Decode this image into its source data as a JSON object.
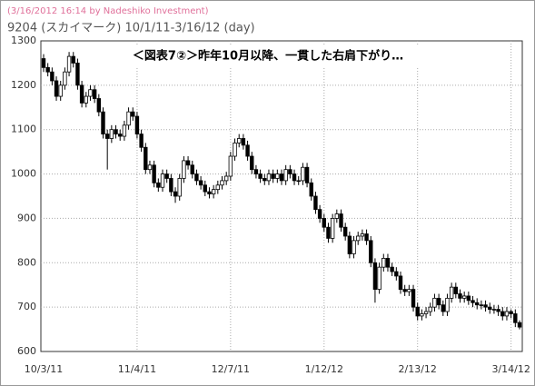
{
  "chart_data": {
    "type": "candlestick",
    "subtitle": "(3/16/2012 16:14 by Nadeshiko Investment)",
    "title": "9204 (スカイマーク)  10/1/11-3/16/12 (day)",
    "annotation": "＜図表7②＞昨年10月以降、一貫した右肩下がり…",
    "categories": [
      "10/3/11",
      null,
      null,
      null,
      null,
      null,
      null,
      null,
      null,
      null,
      null,
      null,
      null,
      null,
      null,
      null,
      null,
      null,
      null,
      null,
      null,
      null,
      "11/4/11",
      null,
      null,
      null,
      null,
      null,
      null,
      null,
      null,
      null,
      null,
      null,
      null,
      null,
      null,
      null,
      null,
      null,
      null,
      null,
      null,
      null,
      "12/7/11",
      null,
      null,
      null,
      null,
      null,
      null,
      null,
      null,
      null,
      null,
      null,
      null,
      null,
      null,
      null,
      null,
      null,
      null,
      null,
      null,
      null,
      "1/12/12",
      null,
      null,
      null,
      null,
      null,
      null,
      null,
      null,
      null,
      null,
      null,
      null,
      null,
      null,
      null,
      null,
      null,
      null,
      null,
      null,
      null,
      "2/13/12",
      null,
      null,
      null,
      null,
      null,
      null,
      null,
      null,
      null,
      null,
      null,
      null,
      null,
      null,
      null,
      null,
      null,
      null,
      null,
      null,
      null,
      "3/14/12",
      null,
      null
    ],
    "open": [
      1260,
      1240,
      1230,
      1210,
      1175,
      1200,
      1230,
      1265,
      1250,
      1200,
      1160,
      1175,
      1190,
      1170,
      1140,
      1090,
      1080,
      1100,
      1090,
      1085,
      1110,
      1140,
      1130,
      1090,
      1060,
      1010,
      1020,
      980,
      970,
      1000,
      990,
      960,
      950,
      990,
      1030,
      1020,
      1000,
      985,
      975,
      960,
      955,
      965,
      975,
      985,
      995,
      1040,
      1070,
      1080,
      1065,
      1040,
      1010,
      1000,
      990,
      985,
      1000,
      990,
      1000,
      985,
      1010,
      1000,
      985,
      985,
      1015,
      980,
      950,
      920,
      900,
      880,
      855,
      900,
      910,
      880,
      860,
      820,
      850,
      860,
      865,
      850,
      800,
      740,
      790,
      810,
      790,
      780,
      770,
      740,
      735,
      740,
      700,
      680,
      685,
      690,
      700,
      720,
      705,
      690,
      720,
      745,
      730,
      720,
      725,
      715,
      710,
      705,
      705,
      700,
      695,
      695,
      690,
      680,
      690,
      685,
      665
    ],
    "high": [
      1270,
      1250,
      1240,
      1220,
      1210,
      1240,
      1275,
      1275,
      1260,
      1210,
      1185,
      1200,
      1200,
      1180,
      1150,
      1100,
      1110,
      1110,
      1100,
      1120,
      1150,
      1150,
      1140,
      1100,
      1070,
      1030,
      1030,
      990,
      1010,
      1010,
      1000,
      970,
      1000,
      1040,
      1040,
      1030,
      1010,
      995,
      985,
      970,
      975,
      985,
      995,
      1005,
      1050,
      1080,
      1090,
      1090,
      1075,
      1050,
      1020,
      1010,
      1000,
      1010,
      1010,
      1010,
      1010,
      1020,
      1020,
      1010,
      995,
      1025,
      1025,
      990,
      960,
      930,
      910,
      890,
      910,
      920,
      920,
      890,
      870,
      860,
      870,
      875,
      875,
      860,
      810,
      800,
      820,
      820,
      800,
      790,
      780,
      750,
      750,
      750,
      710,
      695,
      700,
      710,
      730,
      730,
      715,
      730,
      755,
      755,
      740,
      735,
      735,
      725,
      720,
      715,
      715,
      710,
      705,
      705,
      700,
      700,
      695,
      695,
      670
    ],
    "low": [
      1230,
      1220,
      1200,
      1165,
      1165,
      1190,
      1220,
      1240,
      1190,
      1150,
      1150,
      1165,
      1160,
      1130,
      1080,
      1010,
      1070,
      1080,
      1075,
      1075,
      1100,
      1120,
      1080,
      1050,
      1000,
      1000,
      970,
      960,
      960,
      980,
      950,
      935,
      940,
      980,
      1010,
      990,
      975,
      965,
      950,
      945,
      945,
      955,
      965,
      975,
      985,
      1030,
      1060,
      1055,
      1030,
      1000,
      990,
      980,
      975,
      975,
      980,
      980,
      975,
      975,
      990,
      975,
      975,
      975,
      970,
      940,
      910,
      890,
      870,
      845,
      845,
      890,
      870,
      850,
      810,
      810,
      840,
      850,
      840,
      790,
      710,
      730,
      780,
      780,
      770,
      760,
      730,
      725,
      725,
      690,
      670,
      670,
      675,
      680,
      690,
      695,
      680,
      680,
      710,
      720,
      710,
      710,
      705,
      700,
      695,
      695,
      690,
      685,
      685,
      680,
      670,
      670,
      675,
      655,
      650
    ],
    "close": [
      1240,
      1230,
      1210,
      1175,
      1200,
      1230,
      1265,
      1250,
      1200,
      1160,
      1175,
      1190,
      1170,
      1140,
      1090,
      1080,
      1100,
      1090,
      1085,
      1110,
      1140,
      1130,
      1090,
      1060,
      1010,
      1020,
      980,
      970,
      1000,
      990,
      960,
      950,
      990,
      1030,
      1020,
      1000,
      985,
      975,
      960,
      955,
      965,
      975,
      985,
      995,
      1040,
      1070,
      1080,
      1065,
      1040,
      1010,
      1000,
      990,
      985,
      1000,
      990,
      1000,
      985,
      1010,
      1000,
      985,
      985,
      1015,
      980,
      950,
      920,
      900,
      880,
      855,
      900,
      910,
      880,
      860,
      820,
      850,
      860,
      865,
      850,
      800,
      740,
      790,
      810,
      790,
      780,
      770,
      740,
      735,
      740,
      700,
      680,
      685,
      690,
      700,
      720,
      705,
      690,
      720,
      745,
      730,
      720,
      725,
      715,
      710,
      705,
      705,
      700,
      695,
      695,
      690,
      680,
      690,
      685,
      665,
      655
    ],
    "ylim": [
      600,
      1300
    ],
    "yticks": [
      600,
      700,
      800,
      900,
      1000,
      1100,
      1200,
      1300
    ],
    "grid": true,
    "color": "#000000"
  }
}
